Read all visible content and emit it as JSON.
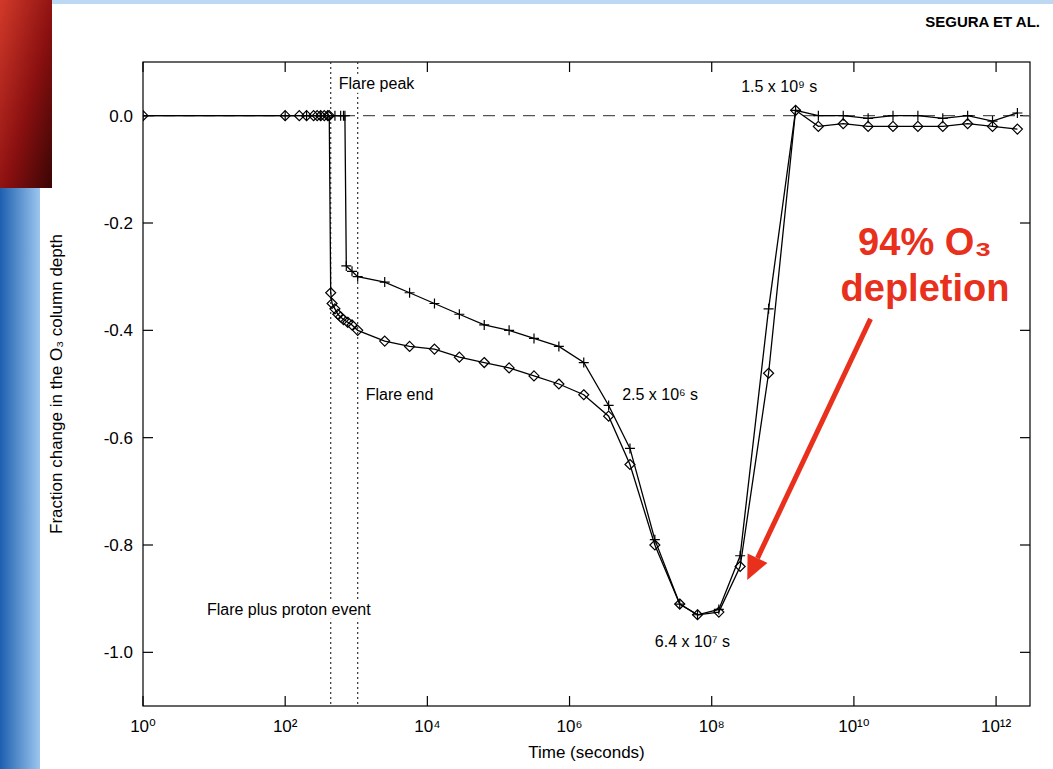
{
  "chart_data": {
    "type": "line",
    "source": "SEGURA ET AL.",
    "x_label": "Time (seconds)",
    "y_label": "Fraction change in the O₃ column depth",
    "log": "x",
    "grid": false,
    "xlim": [
      1,
      3000000000000
    ],
    "ylim": [
      -1.1,
      0.1
    ],
    "xticks": [
      {
        "value": 1,
        "label": "10⁰"
      },
      {
        "value": 100,
        "label": "10²"
      },
      {
        "value": 10000,
        "label": "10⁴"
      },
      {
        "value": 1000000,
        "label": "10⁶"
      },
      {
        "value": 100000000,
        "label": "10⁸"
      },
      {
        "value": 10000000000,
        "label": "10¹⁰"
      },
      {
        "value": 1000000000000,
        "label": "10¹²"
      }
    ],
    "yticks": [
      {
        "value": 0,
        "label": "0.0"
      },
      -0.2,
      -0.4,
      -0.6,
      -0.8,
      {
        "value": -1,
        "label": "-1.0"
      }
    ],
    "hline": 0,
    "vlines": [
      {
        "x": 437,
        "label": "Flare peak"
      },
      {
        "x": 1047,
        "label": "Flare end"
      }
    ],
    "series": [
      {
        "color": "#000000",
        "marker": "diamond",
        "line_style": "solid",
        "x": [
          1,
          100,
          158,
          200,
          251,
          282,
          316,
          355,
          398,
          417,
          437,
          457,
          501,
          550,
          603,
          661,
          759,
          871,
          1047,
          2512,
          5623,
          12589,
          28184,
          63096,
          141254,
          316228,
          707946,
          1584893,
          3548134,
          7079458,
          15848932,
          35481339,
          63095734,
          125892541,
          251188643,
          630957344,
          1513561248,
          3162277660,
          7079457844,
          15848931925,
          35481338923,
          79432823472,
          177827941004,
          398107170553,
          891250938134,
          1995262314969
        ],
        "values": [
          0,
          0,
          0,
          0,
          0,
          0,
          0,
          0,
          0,
          0,
          -0.33,
          -0.35,
          -0.36,
          -0.37,
          -0.375,
          -0.38,
          -0.385,
          -0.39,
          -0.4,
          -0.42,
          -0.43,
          -0.435,
          -0.45,
          -0.46,
          -0.47,
          -0.485,
          -0.5,
          -0.52,
          -0.56,
          -0.65,
          -0.8,
          -0.91,
          -0.93,
          -0.925,
          -0.84,
          -0.48,
          0.01,
          -0.02,
          -0.015,
          -0.02,
          -0.02,
          -0.02,
          -0.02,
          -0.015,
          -0.02,
          -0.025
        ]
      },
      {
        "color": "#000000",
        "marker": "plus",
        "line_style": "solid",
        "x": [
          1,
          100,
          200,
          316,
          398,
          501,
          603,
          661,
          692,
          724,
          871,
          1047,
          2512,
          5623,
          12589,
          28184,
          63096,
          141254,
          316228,
          707946,
          1584893,
          3548134,
          7079458,
          15848932,
          35481339,
          63095734,
          125892541,
          251188643,
          630957344,
          1513561248,
          3162277660,
          7079457844,
          15848931925,
          35481338923,
          79432823472,
          177827941004,
          398107170553,
          891250938134,
          1995262314969
        ],
        "values": [
          0,
          0,
          0,
          0,
          0,
          0,
          0,
          0,
          0,
          -0.28,
          -0.29,
          -0.3,
          -0.31,
          -0.33,
          -0.35,
          -0.37,
          -0.39,
          -0.4,
          -0.415,
          -0.43,
          -0.46,
          -0.54,
          -0.62,
          -0.79,
          -0.91,
          -0.93,
          -0.92,
          -0.82,
          -0.36,
          0.01,
          0,
          0,
          -0.005,
          0,
          0,
          -0.005,
          0,
          -0.01,
          0.005
        ]
      }
    ],
    "annotations": [
      {
        "text": "1.5 x 10⁹ s"
      },
      {
        "text": "2.5 x 10⁶ s"
      },
      {
        "text": "6.4 x 10⁷ s"
      },
      {
        "text": "Flare plus proton event"
      }
    ],
    "callout": {
      "lines": [
        "94% O₃",
        "depletion"
      ],
      "color": "#e8301c"
    }
  }
}
